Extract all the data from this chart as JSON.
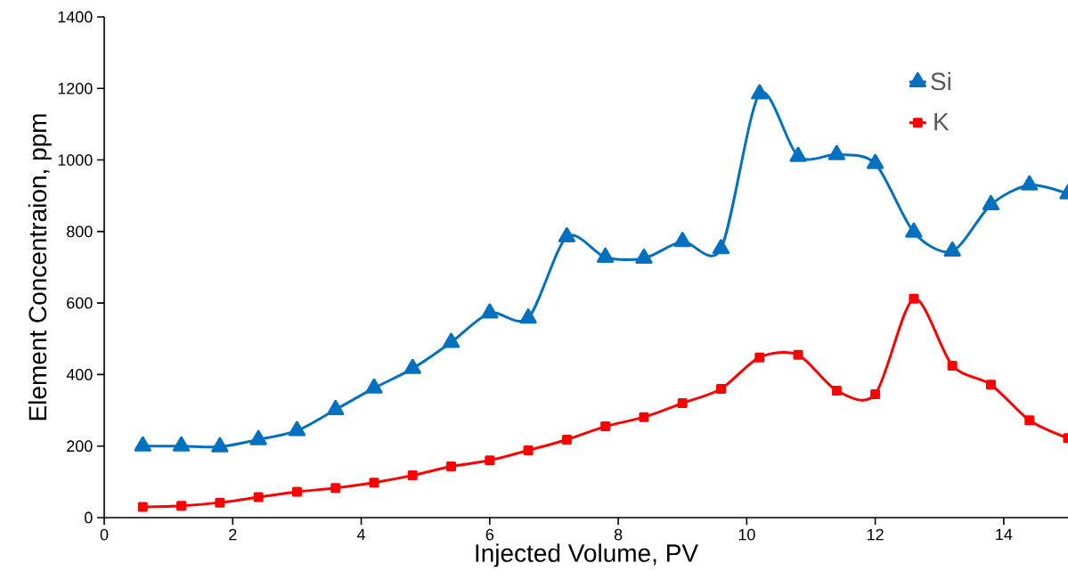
{
  "chart_data": {
    "type": "line",
    "xlabel": "Injected Volume, PV",
    "ylabel": "Element Concentraion, ppm",
    "x": [
      0.6,
      1.2,
      1.8,
      2.4,
      3.0,
      3.6,
      4.2,
      4.8,
      5.4,
      6.0,
      6.6,
      7.2,
      7.8,
      8.4,
      9.0,
      9.6,
      10.2,
      10.8,
      11.4,
      12.0,
      12.6,
      13.2,
      13.8,
      14.4,
      15.0
    ],
    "series": [
      {
        "name": "Si",
        "color": "#0070c0",
        "marker": "triangle",
        "values": [
          200,
          200,
          198,
          218,
          243,
          302,
          362,
          417,
          490,
          572,
          558,
          785,
          728,
          725,
          772,
          752,
          1185,
          1010,
          1015,
          990,
          798,
          745,
          875,
          930,
          905
        ]
      },
      {
        "name": "K",
        "color": "#ff0000",
        "marker": "square",
        "values": [
          30,
          33,
          42,
          57,
          72,
          83,
          98,
          118,
          143,
          160,
          188,
          218,
          255,
          281,
          320,
          360,
          448,
          455,
          355,
          345,
          612,
          425,
          372,
          272,
          222
        ]
      }
    ],
    "xlim": [
      0,
      15
    ],
    "xticks": [
      0,
      2,
      4,
      6,
      8,
      10,
      12,
      14
    ],
    "ylim": [
      0,
      1400
    ],
    "yticks": [
      0,
      200,
      400,
      600,
      800,
      1000,
      1200,
      1400
    ],
    "grid": false,
    "legend": "top right",
    "line_style": "solid"
  }
}
